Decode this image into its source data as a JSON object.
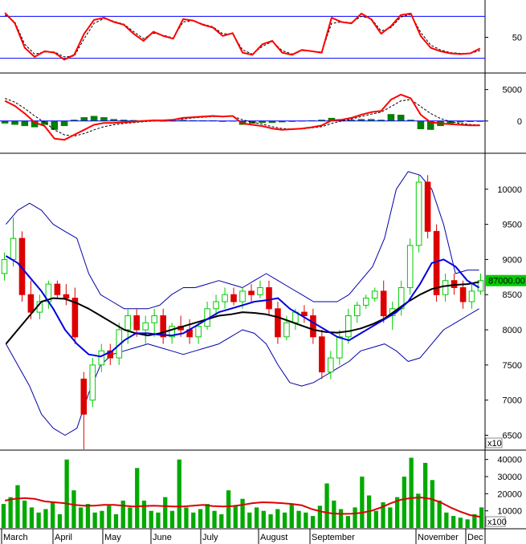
{
  "chart_data": [
    {
      "type": "line",
      "panel": "oscillator",
      "series": [
        {
          "values": [
            85,
            70,
            35,
            22,
            30,
            28,
            18,
            25,
            55,
            75,
            78,
            72,
            68,
            55,
            45,
            58,
            52,
            48,
            76,
            74,
            68,
            64,
            52,
            56,
            28,
            25,
            40,
            45,
            28,
            25,
            32,
            30,
            28,
            78,
            72,
            70,
            84,
            76,
            55,
            66,
            82,
            84,
            52,
            35,
            30,
            27,
            26,
            27,
            34
          ]
        },
        {
          "values": [
            82,
            72,
            40,
            26,
            29,
            29,
            22,
            23,
            48,
            70,
            77,
            73,
            69,
            58,
            48,
            56,
            53,
            49,
            72,
            74,
            69,
            65,
            55,
            55,
            32,
            26,
            37,
            44,
            31,
            26,
            31,
            30,
            29,
            70,
            72,
            71,
            80,
            77,
            59,
            64,
            79,
            83,
            57,
            39,
            32,
            28,
            27,
            27,
            31
          ]
        }
      ],
      "yticks": [
        50
      ],
      "ylim": [
        0,
        100
      ],
      "hlines": [
        80,
        20
      ],
      "colors": {
        "main": "#ff0000",
        "signal": "#000000",
        "level": "#0000ff"
      }
    },
    {
      "type": "line",
      "panel": "macd",
      "series": [
        {
          "values": [
            3200,
            2400,
            1200,
            -200,
            -800,
            -2800,
            -3000,
            -2200,
            -1400,
            -600,
            -300,
            -300,
            -200,
            -100,
            0,
            100,
            100,
            200,
            500,
            600,
            700,
            800,
            700,
            800,
            -400,
            -600,
            -800,
            -1200,
            -1400,
            -1300,
            -1200,
            -1000,
            -700,
            100,
            200,
            500,
            1000,
            1400,
            1600,
            3400,
            4200,
            3600,
            1000,
            -200,
            -400,
            -500,
            -600,
            -700,
            -700
          ]
        },
        {
          "values": [
            3600,
            3000,
            2000,
            800,
            -200,
            -1400,
            -2200,
            -2400,
            -2000,
            -1400,
            -900,
            -600,
            -400,
            -250,
            -120,
            0,
            60,
            140,
            320,
            480,
            600,
            700,
            700,
            760,
            200,
            -200,
            -500,
            -900,
            -1200,
            -1300,
            -1250,
            -1100,
            -900,
            -400,
            0,
            300,
            700,
            1100,
            1400,
            2300,
            3200,
            3400,
            2300,
            1200,
            400,
            -100,
            -400,
            -550,
            -650
          ]
        },
        {
          "values": [
            -400,
            -600,
            -800,
            -1000,
            -600,
            -1400,
            -800,
            200,
            600,
            800,
            600,
            300,
            200,
            150,
            120,
            100,
            40,
            60,
            180,
            120,
            100,
            100,
            0,
            40,
            -600,
            -400,
            -300,
            -300,
            -200,
            0,
            50,
            100,
            200,
            500,
            200,
            200,
            300,
            300,
            200,
            1100,
            1000,
            200,
            -1300,
            -1400,
            -800,
            -400,
            -200,
            -150,
            -50
          ]
        }
      ],
      "yticks": [
        5000,
        0
      ],
      "ylim": [
        -5000,
        7500
      ],
      "colors": {
        "macd": "#ff0000",
        "signal": "#000000",
        "hist_pos": "#008000",
        "hist_neg": "#008000",
        "zero": "#0000ff"
      }
    },
    {
      "type": "candlestick",
      "panel": "price",
      "series": [
        {
          "name_key": "ohlc",
          "values": [
            [
              8800,
              9100,
              8700,
              9000
            ],
            [
              9000,
              9600,
              8900,
              9300
            ],
            [
              9300,
              9400,
              8400,
              8500
            ],
            [
              8500,
              8700,
              8150,
              8250
            ],
            [
              8250,
              8500,
              8150,
              8400
            ],
            [
              8400,
              8700,
              8300,
              8650
            ],
            [
              8650,
              8700,
              8450,
              8500
            ],
            [
              8500,
              8650,
              8350,
              8450
            ],
            [
              8450,
              8600,
              7800,
              7900
            ],
            [
              7300,
              7400,
              6300,
              6800
            ],
            [
              7000,
              7600,
              6900,
              7500
            ],
            [
              7500,
              7800,
              7400,
              7700
            ],
            [
              7700,
              7800,
              7500,
              7600
            ],
            [
              7600,
              8100,
              7500,
              8000
            ],
            [
              8000,
              8300,
              7800,
              8200
            ],
            [
              8200,
              8300,
              7900,
              8000
            ],
            [
              8000,
              8200,
              7800,
              8100
            ],
            [
              8100,
              8300,
              7900,
              8200
            ],
            [
              8200,
              8300,
              7800,
              7900
            ],
            [
              7900,
              8100,
              7800,
              8050
            ],
            [
              8050,
              8200,
              7900,
              8000
            ],
            [
              8000,
              8150,
              7800,
              7900
            ],
            [
              7900,
              8100,
              7800,
              8050
            ],
            [
              8050,
              8400,
              8000,
              8300
            ],
            [
              8300,
              8500,
              8200,
              8400
            ],
            [
              8400,
              8600,
              8300,
              8500
            ],
            [
              8500,
              8600,
              8350,
              8400
            ],
            [
              8400,
              8600,
              8300,
              8550
            ],
            [
              8550,
              8650,
              8400,
              8500
            ],
            [
              8500,
              8700,
              8450,
              8600
            ],
            [
              8600,
              8700,
              8200,
              8300
            ],
            [
              8300,
              8400,
              7800,
              7900
            ],
            [
              7900,
              8200,
              7850,
              8100
            ],
            [
              8100,
              8300,
              8000,
              8250
            ],
            [
              8250,
              8350,
              8100,
              8200
            ],
            [
              8200,
              8300,
              7800,
              7900
            ],
            [
              7900,
              8000,
              7300,
              7400
            ],
            [
              7400,
              7700,
              7300,
              7600
            ],
            [
              7600,
              8000,
              7500,
              7900
            ],
            [
              7900,
              8300,
              7800,
              8200
            ],
            [
              8200,
              8400,
              8100,
              8350
            ],
            [
              8350,
              8500,
              8300,
              8450
            ],
            [
              8450,
              8600,
              8400,
              8550
            ],
            [
              8550,
              8700,
              8100,
              8200
            ],
            [
              8200,
              8400,
              8000,
              8300
            ],
            [
              8300,
              8700,
              8200,
              8600
            ],
            [
              8600,
              9300,
              8500,
              9200
            ],
            [
              9200,
              10200,
              9100,
              10100
            ],
            [
              10100,
              10200,
              9300,
              9400
            ],
            [
              9400,
              9500,
              8400,
              8500
            ],
            [
              8500,
              8800,
              8400,
              8700
            ],
            [
              8700,
              8800,
              8500,
              8600
            ],
            [
              8600,
              8700,
              8300,
              8400
            ],
            [
              8400,
              8650,
              8300,
              8550
            ],
            [
              8550,
              8800,
              8500,
              8700
            ]
          ]
        },
        {
          "name_key": "ma_fast",
          "values": [
            9050,
            8950,
            8750,
            8550,
            8300,
            8000,
            7800,
            7650,
            7620,
            7700,
            7850,
            7950,
            7950,
            7930,
            7920,
            7950,
            8050,
            8150,
            8250,
            8300,
            8350,
            8400,
            8420,
            8450,
            8300,
            8200,
            8100,
            8000,
            7900,
            7850,
            7950,
            8050,
            8150,
            8250,
            8400,
            8650,
            8950,
            9000,
            8900,
            8700,
            8600
          ]
        },
        {
          "name_key": "ma_slow",
          "values": [
            7800,
            8000,
            8200,
            8400,
            8450,
            8440,
            8380,
            8300,
            8200,
            8100,
            8000,
            7950,
            7920,
            7950,
            8000,
            8050,
            8100,
            8150,
            8200,
            8220,
            8250,
            8240,
            8220,
            8180,
            8120,
            8060,
            8000,
            7970,
            7960,
            7980,
            8020,
            8080,
            8160,
            8280,
            8400,
            8500,
            8580,
            8620,
            8640,
            8650,
            8680
          ]
        },
        {
          "name_key": "bb_upper",
          "values": [
            9500,
            9700,
            9800,
            9700,
            9500,
            9400,
            9300,
            8800,
            8500,
            8400,
            8300,
            8300,
            8300,
            8350,
            8500,
            8600,
            8600,
            8650,
            8700,
            8650,
            8600,
            8700,
            8800,
            8700,
            8600,
            8500,
            8400,
            8400,
            8400,
            8500,
            8700,
            8900,
            9300,
            10000,
            10250,
            10200,
            10000,
            9500,
            8800,
            8850,
            8850
          ]
        },
        {
          "name_key": "bb_lower",
          "values": [
            7800,
            7500,
            7200,
            6800,
            6600,
            6500,
            6600,
            7100,
            7500,
            7650,
            7700,
            7750,
            7800,
            7750,
            7700,
            7650,
            7700,
            7750,
            7800,
            7900,
            8000,
            7950,
            7800,
            7500,
            7250,
            7200,
            7250,
            7350,
            7450,
            7550,
            7700,
            7750,
            7800,
            7700,
            7550,
            7600,
            7800,
            8000,
            8100,
            8200,
            8300
          ]
        }
      ],
      "last_price_label": "87000.00",
      "yticks": [
        10000,
        9500,
        9000,
        8500,
        8000,
        7500,
        7000,
        6500
      ],
      "ylim": [
        6300,
        10500
      ],
      "scale_note": "x10",
      "colors": {
        "up": "#00cc00",
        "down": "#dd0000",
        "ma_fast": "#0000dd",
        "ma_slow": "#000000",
        "bb": "#0000aa",
        "price_box": "#00cc00"
      }
    },
    {
      "type": "bar",
      "panel": "volume",
      "series": [
        {
          "name_key": "volume",
          "values": [
            14000,
            18000,
            25000,
            16000,
            12000,
            9000,
            11000,
            15000,
            8000,
            40000,
            22000,
            12000,
            14000,
            9000,
            10000,
            13000,
            8000,
            16000,
            12000,
            35000,
            16000,
            10000,
            9000,
            18000,
            10000,
            40000,
            12000,
            9000,
            11000,
            14000,
            10000,
            8000,
            22000,
            13000,
            17000,
            9000,
            12000,
            10000,
            8000,
            11000,
            9000,
            14000,
            10000,
            9000,
            7000,
            13000,
            26000,
            16000,
            11000,
            7000,
            12000,
            30000,
            19000,
            10000,
            15000,
            12000,
            18000,
            30000,
            41000,
            20000,
            38000,
            28000,
            16000,
            9000,
            7000,
            6000,
            5000,
            8000,
            12000
          ]
        },
        {
          "name_key": "volume_ma",
          "values": [
            16000,
            17000,
            17500,
            17000,
            15500,
            15000,
            14500,
            13500,
            13000,
            13000,
            13500,
            13500,
            13000,
            12500,
            12800,
            13000,
            12800,
            12500,
            12500,
            13000,
            13500,
            12800,
            12500,
            12800,
            13500,
            14500,
            15000,
            14800,
            14500,
            14000,
            13200,
            11000,
            9500,
            8500,
            8200,
            8300,
            8800,
            10000,
            12000,
            14500,
            16500,
            17500,
            17800,
            17000,
            15000,
            12000,
            9500,
            7500,
            6500
          ]
        }
      ],
      "yticks": [
        40000,
        30000,
        20000,
        10000
      ],
      "ylim": [
        0,
        45000
      ],
      "scale_note": "x100",
      "colors": {
        "bars": "#00aa00",
        "ma": "#dd0000"
      }
    }
  ],
  "x_axis": {
    "labels": [
      "March",
      "April",
      "May",
      "June",
      "July",
      "August",
      "September",
      "November",
      "Dec"
    ]
  }
}
